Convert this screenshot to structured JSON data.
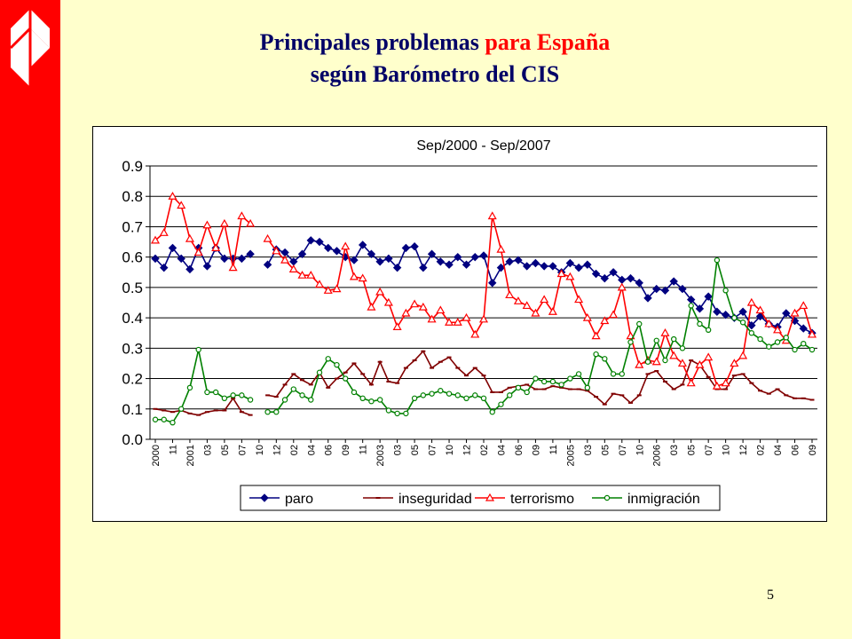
{
  "slide": {
    "title_part1": "Principales problemas",
    "title_accent": "para España",
    "title_line2": "según Barómetro del CIS",
    "page_number": "5",
    "colors": {
      "background": "#ffffcc",
      "sidebar": "#ff0000",
      "title": "#000066",
      "accent": "#ff0000"
    },
    "logo": "corporate-logo-icon"
  },
  "chart_data": {
    "type": "line",
    "title": "Sep/2000 - Sep/2007",
    "ylim": [
      0,
      0.9
    ],
    "yticks": [
      "0.0",
      "0.1",
      "0.2",
      "0.3",
      "0.4",
      "0.5",
      "0.6",
      "0.7",
      "0.8",
      "0.9"
    ],
    "grid": true,
    "legend_position": "bottom",
    "x_tick_labels": [
      "2000",
      "11",
      "2001",
      "03",
      "05",
      "07",
      "10",
      "12",
      "02",
      "04",
      "06",
      "09",
      "11",
      "2003",
      "03",
      "05",
      "07",
      "10",
      "12",
      "02",
      "04",
      "06",
      "09",
      "11",
      "2005",
      "03",
      "05",
      "07",
      "10",
      "2006",
      "03",
      "05",
      "07",
      "10",
      "12",
      "02",
      "04",
      "06",
      "09"
    ],
    "series": [
      {
        "name": "paro",
        "color": "#000080",
        "marker": "diamond",
        "values": [
          0.595,
          0.565,
          0.63,
          0.595,
          0.56,
          0.63,
          0.57,
          0.63,
          0.595,
          0.595,
          0.595,
          0.61,
          null,
          0.575,
          0.625,
          0.615,
          0.585,
          0.61,
          0.655,
          0.65,
          0.63,
          0.62,
          0.6,
          0.59,
          0.64,
          0.61,
          0.585,
          0.595,
          0.565,
          0.63,
          0.635,
          0.565,
          0.61,
          0.585,
          0.575,
          0.6,
          0.575,
          0.6,
          0.605,
          0.515,
          0.565,
          0.585,
          0.59,
          0.57,
          0.58,
          0.57,
          0.57,
          0.55,
          0.58,
          0.565,
          0.575,
          0.545,
          0.53,
          0.55,
          0.525,
          0.53,
          0.515,
          0.465,
          0.495,
          0.49,
          0.52,
          0.495,
          0.46,
          0.43,
          0.47,
          0.42,
          0.41,
          0.4,
          0.42,
          0.375,
          0.405,
          0.38,
          0.37,
          0.415,
          0.39,
          0.365,
          0.35
        ]
      },
      {
        "name": "inseguridad",
        "color": "#800000",
        "marker": "dash",
        "values": [
          0.1,
          0.095,
          0.09,
          0.095,
          0.085,
          0.08,
          0.09,
          0.095,
          0.095,
          0.135,
          0.09,
          0.08,
          null,
          0.145,
          0.14,
          0.18,
          0.215,
          0.195,
          0.18,
          0.22,
          0.17,
          0.2,
          0.22,
          0.25,
          0.215,
          0.18,
          0.255,
          0.19,
          0.185,
          0.235,
          0.26,
          0.29,
          0.235,
          0.255,
          0.27,
          0.235,
          0.21,
          0.235,
          0.21,
          0.155,
          0.155,
          0.17,
          0.175,
          0.18,
          0.165,
          0.165,
          0.175,
          0.17,
          0.165,
          0.165,
          0.16,
          0.14,
          0.115,
          0.15,
          0.145,
          0.12,
          0.145,
          0.215,
          0.225,
          0.19,
          0.165,
          0.18,
          0.26,
          0.245,
          0.205,
          0.165,
          0.165,
          0.21,
          0.215,
          0.185,
          0.16,
          0.15,
          0.165,
          0.145,
          0.135,
          0.135,
          0.13
        ]
      },
      {
        "name": "terrorismo",
        "color": "#ff0000",
        "marker": "triangle",
        "values": [
          0.655,
          0.68,
          0.8,
          0.77,
          0.66,
          0.615,
          0.705,
          0.63,
          0.71,
          0.565,
          0.735,
          0.71,
          null,
          0.66,
          0.62,
          0.59,
          0.56,
          0.54,
          0.54,
          0.51,
          0.49,
          0.495,
          0.635,
          0.535,
          0.53,
          0.435,
          0.485,
          0.45,
          0.37,
          0.415,
          0.445,
          0.435,
          0.395,
          0.425,
          0.385,
          0.385,
          0.4,
          0.345,
          0.395,
          0.735,
          0.625,
          0.475,
          0.455,
          0.44,
          0.415,
          0.46,
          0.42,
          0.545,
          0.535,
          0.46,
          0.4,
          0.34,
          0.39,
          0.41,
          0.5,
          0.34,
          0.245,
          0.26,
          0.255,
          0.35,
          0.275,
          0.25,
          0.185,
          0.245,
          0.27,
          0.175,
          0.185,
          0.25,
          0.275,
          0.45,
          0.425,
          0.38,
          0.36,
          0.325,
          0.415,
          0.44,
          0.345
        ]
      },
      {
        "name": "inmigración",
        "color": "#008000",
        "marker": "circle",
        "values": [
          0.065,
          0.065,
          0.055,
          0.1,
          0.17,
          0.295,
          0.155,
          0.155,
          0.135,
          0.145,
          0.145,
          0.13,
          null,
          0.09,
          0.09,
          0.13,
          0.165,
          0.145,
          0.13,
          0.22,
          0.265,
          0.245,
          0.2,
          0.155,
          0.135,
          0.125,
          0.13,
          0.095,
          0.085,
          0.085,
          0.135,
          0.145,
          0.15,
          0.16,
          0.15,
          0.145,
          0.135,
          0.145,
          0.135,
          0.09,
          0.115,
          0.145,
          0.17,
          0.155,
          0.2,
          0.19,
          0.19,
          0.18,
          0.2,
          0.215,
          0.17,
          0.28,
          0.265,
          0.215,
          0.215,
          0.32,
          0.38,
          0.255,
          0.325,
          0.26,
          0.33,
          0.3,
          0.44,
          0.38,
          0.36,
          0.59,
          0.49,
          0.4,
          0.385,
          0.35,
          0.33,
          0.305,
          0.32,
          0.335,
          0.295,
          0.315,
          0.295
        ]
      }
    ]
  }
}
